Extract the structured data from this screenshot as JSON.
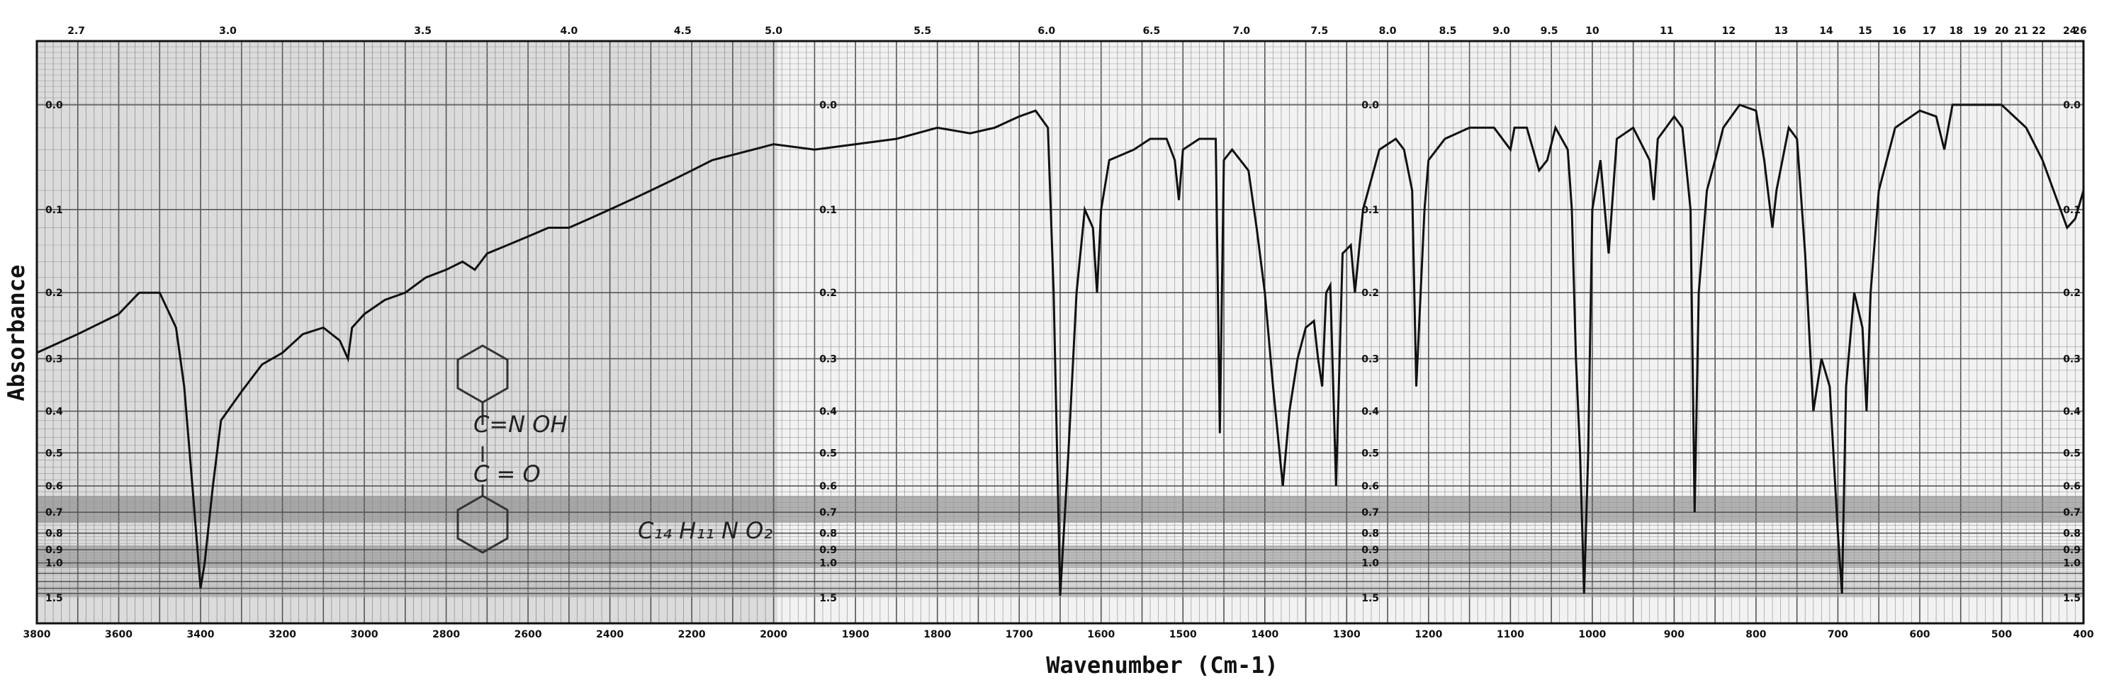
{
  "chart_data": {
    "type": "line",
    "title": "",
    "xlabel": "Wavenumber (Cm-1)",
    "ylabel": "Absorbance",
    "x_unit": "cm-1",
    "xlim": [
      3800,
      400
    ],
    "x_ticks_lower": [
      3800,
      3600,
      3400,
      3200,
      3000,
      2800,
      2600,
      2400,
      2200,
      2000,
      1900,
      1800,
      1700,
      1600,
      1500,
      1400,
      1300,
      1200,
      1100,
      1000,
      900,
      800,
      700,
      600,
      500,
      400
    ],
    "x_ticks_upper_microns": [
      "2.7",
      "3.0",
      "3.5",
      "4.0",
      "4.5",
      "5.0",
      "5.5",
      "6.0",
      "6.5",
      "7.0",
      "7.5",
      "8.0",
      "8.5",
      "9.0",
      "9.5",
      "10",
      "11",
      "12",
      "13",
      "14",
      "15",
      "16",
      "17",
      "18",
      "19",
      "20",
      "21",
      "22",
      "24",
      "26"
    ],
    "y_ticks": [
      "0.0",
      "0.1",
      "0.2",
      "0.3",
      "0.4",
      "0.5",
      "0.6",
      "0.7",
      "0.8",
      "0.9",
      "1.0",
      "1.5"
    ],
    "y_scale": "absorbance (nonlinear chart paper)",
    "grid": true,
    "annotations": {
      "structure_text_1": "C=N OH",
      "structure_text_2": "C = O",
      "formula_text": "C₁₄ H₁₁ N O₂"
    },
    "series": [
      {
        "points": [
          [
            3800,
            0.29
          ],
          [
            3700,
            0.26
          ],
          [
            3600,
            0.23
          ],
          [
            3550,
            0.2
          ],
          [
            3500,
            0.2
          ],
          [
            3460,
            0.25
          ],
          [
            3440,
            0.35
          ],
          [
            3420,
            0.6
          ],
          [
            3400,
            1.3
          ],
          [
            3390,
            1.0
          ],
          [
            3370,
            0.6
          ],
          [
            3350,
            0.42
          ],
          [
            3300,
            0.36
          ],
          [
            3250,
            0.31
          ],
          [
            3200,
            0.29
          ],
          [
            3150,
            0.26
          ],
          [
            3100,
            0.25
          ],
          [
            3060,
            0.27
          ],
          [
            3040,
            0.3
          ],
          [
            3030,
            0.25
          ],
          [
            3000,
            0.23
          ],
          [
            2950,
            0.21
          ],
          [
            2900,
            0.2
          ],
          [
            2850,
            0.18
          ],
          [
            2800,
            0.17
          ],
          [
            2760,
            0.16
          ],
          [
            2730,
            0.17
          ],
          [
            2700,
            0.15
          ],
          [
            2650,
            0.14
          ],
          [
            2600,
            0.13
          ],
          [
            2550,
            0.12
          ],
          [
            2500,
            0.12
          ],
          [
            2450,
            0.11
          ],
          [
            2400,
            0.1
          ],
          [
            2350,
            0.09
          ],
          [
            2300,
            0.08
          ],
          [
            2250,
            0.07
          ],
          [
            2200,
            0.06
          ],
          [
            2150,
            0.05
          ],
          [
            2100,
            0.045
          ],
          [
            2050,
            0.04
          ],
          [
            2000,
            0.035
          ],
          [
            1950,
            0.04
          ],
          [
            1900,
            0.035
          ],
          [
            1850,
            0.03
          ],
          [
            1800,
            0.02
          ],
          [
            1760,
            0.025
          ],
          [
            1730,
            0.02
          ],
          [
            1700,
            0.01
          ],
          [
            1680,
            0.005
          ],
          [
            1665,
            0.02
          ],
          [
            1658,
            0.2
          ],
          [
            1650,
            1.45
          ],
          [
            1640,
            0.5
          ],
          [
            1630,
            0.2
          ],
          [
            1620,
            0.1
          ],
          [
            1610,
            0.12
          ],
          [
            1605,
            0.2
          ],
          [
            1600,
            0.1
          ],
          [
            1590,
            0.05
          ],
          [
            1560,
            0.04
          ],
          [
            1540,
            0.03
          ],
          [
            1520,
            0.03
          ],
          [
            1510,
            0.05
          ],
          [
            1505,
            0.09
          ],
          [
            1500,
            0.04
          ],
          [
            1480,
            0.03
          ],
          [
            1460,
            0.03
          ],
          [
            1455,
            0.45
          ],
          [
            1450,
            0.05
          ],
          [
            1440,
            0.04
          ],
          [
            1420,
            0.06
          ],
          [
            1410,
            0.12
          ],
          [
            1400,
            0.2
          ],
          [
            1390,
            0.35
          ],
          [
            1378,
            0.6
          ],
          [
            1370,
            0.4
          ],
          [
            1360,
            0.3
          ],
          [
            1350,
            0.25
          ],
          [
            1340,
            0.24
          ],
          [
            1335,
            0.3
          ],
          [
            1330,
            0.35
          ],
          [
            1325,
            0.2
          ],
          [
            1320,
            0.19
          ],
          [
            1313,
            0.6
          ],
          [
            1305,
            0.15
          ],
          [
            1295,
            0.14
          ],
          [
            1290,
            0.2
          ],
          [
            1280,
            0.1
          ],
          [
            1260,
            0.04
          ],
          [
            1240,
            0.03
          ],
          [
            1230,
            0.04
          ],
          [
            1220,
            0.08
          ],
          [
            1215,
            0.35
          ],
          [
            1205,
            0.1
          ],
          [
            1200,
            0.05
          ],
          [
            1180,
            0.03
          ],
          [
            1150,
            0.02
          ],
          [
            1120,
            0.02
          ],
          [
            1100,
            0.04
          ],
          [
            1095,
            0.02
          ],
          [
            1080,
            0.02
          ],
          [
            1065,
            0.06
          ],
          [
            1055,
            0.05
          ],
          [
            1045,
            0.02
          ],
          [
            1030,
            0.04
          ],
          [
            1025,
            0.1
          ],
          [
            1020,
            0.3
          ],
          [
            1015,
            0.5
          ],
          [
            1010,
            1.4
          ],
          [
            1005,
            0.5
          ],
          [
            1000,
            0.1
          ],
          [
            990,
            0.05
          ],
          [
            980,
            0.15
          ],
          [
            970,
            0.03
          ],
          [
            950,
            0.02
          ],
          [
            930,
            0.05
          ],
          [
            925,
            0.09
          ],
          [
            920,
            0.03
          ],
          [
            900,
            0.01
          ],
          [
            890,
            0.02
          ],
          [
            880,
            0.1
          ],
          [
            875,
            0.7
          ],
          [
            870,
            0.2
          ],
          [
            860,
            0.08
          ],
          [
            850,
            0.05
          ],
          [
            840,
            0.02
          ],
          [
            820,
            0.0
          ],
          [
            800,
            0.005
          ],
          [
            790,
            0.05
          ],
          [
            780,
            0.12
          ],
          [
            775,
            0.08
          ],
          [
            760,
            0.02
          ],
          [
            750,
            0.03
          ],
          [
            740,
            0.15
          ],
          [
            730,
            0.4
          ],
          [
            720,
            0.3
          ],
          [
            710,
            0.35
          ],
          [
            700,
            0.8
          ],
          [
            695,
            1.4
          ],
          [
            690,
            0.35
          ],
          [
            680,
            0.2
          ],
          [
            670,
            0.25
          ],
          [
            665,
            0.4
          ],
          [
            660,
            0.2
          ],
          [
            650,
            0.08
          ],
          [
            630,
            0.02
          ],
          [
            600,
            0.005
          ],
          [
            580,
            0.01
          ],
          [
            570,
            0.04
          ],
          [
            560,
            0.0
          ],
          [
            540,
            0.0
          ],
          [
            500,
            0.0
          ],
          [
            470,
            0.02
          ],
          [
            450,
            0.05
          ],
          [
            420,
            0.12
          ],
          [
            410,
            0.11
          ],
          [
            400,
            0.08
          ]
        ]
      }
    ]
  }
}
